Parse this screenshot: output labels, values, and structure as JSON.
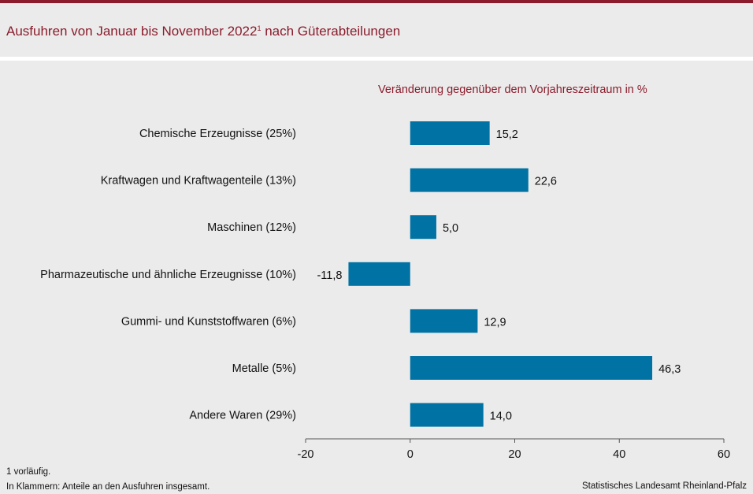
{
  "header": {
    "title": "Ausfuhren von Januar bis November 2022",
    "title_footnote_mark": "1",
    "title_suffix": " nach Güterabteilungen"
  },
  "footer": {
    "note1": "1 vorläufig.",
    "note2": "In Klammern: Anteile an den Ausfuhren insgesamt.",
    "source": "Statistisches Landesamt Rheinland-Pfalz"
  },
  "colors": {
    "bar": "#0072a3",
    "accent": "#8a1c2c"
  },
  "chart_data": {
    "type": "bar",
    "orientation": "horizontal",
    "subtitle": "Veränderung  gegenüber  dem  Vorjahreszeitraum  in %",
    "categories": [
      "Chemische Erzeugnisse (25%)",
      "Kraftwagen und Kraftwagenteile (13%)",
      "Maschinen (12%)",
      "Pharmazeutische und ähnliche Erzeugnisse (10%)",
      "Gummi- und Kunststoffwaren (6%)",
      "Metalle (5%)",
      "Andere Waren (29%)"
    ],
    "values": [
      15.2,
      22.6,
      5.0,
      -11.8,
      12.9,
      46.3,
      14.0
    ],
    "value_labels": [
      "15,2",
      "22,6",
      "5,0",
      "-11,8",
      "12,9",
      "46,3",
      "14,0"
    ],
    "xlim": [
      -20,
      60
    ],
    "xticks": [
      -20,
      0,
      20,
      40,
      60
    ],
    "xtick_labels": [
      "-20",
      "0",
      "20",
      "40",
      "60"
    ],
    "grid": false
  }
}
